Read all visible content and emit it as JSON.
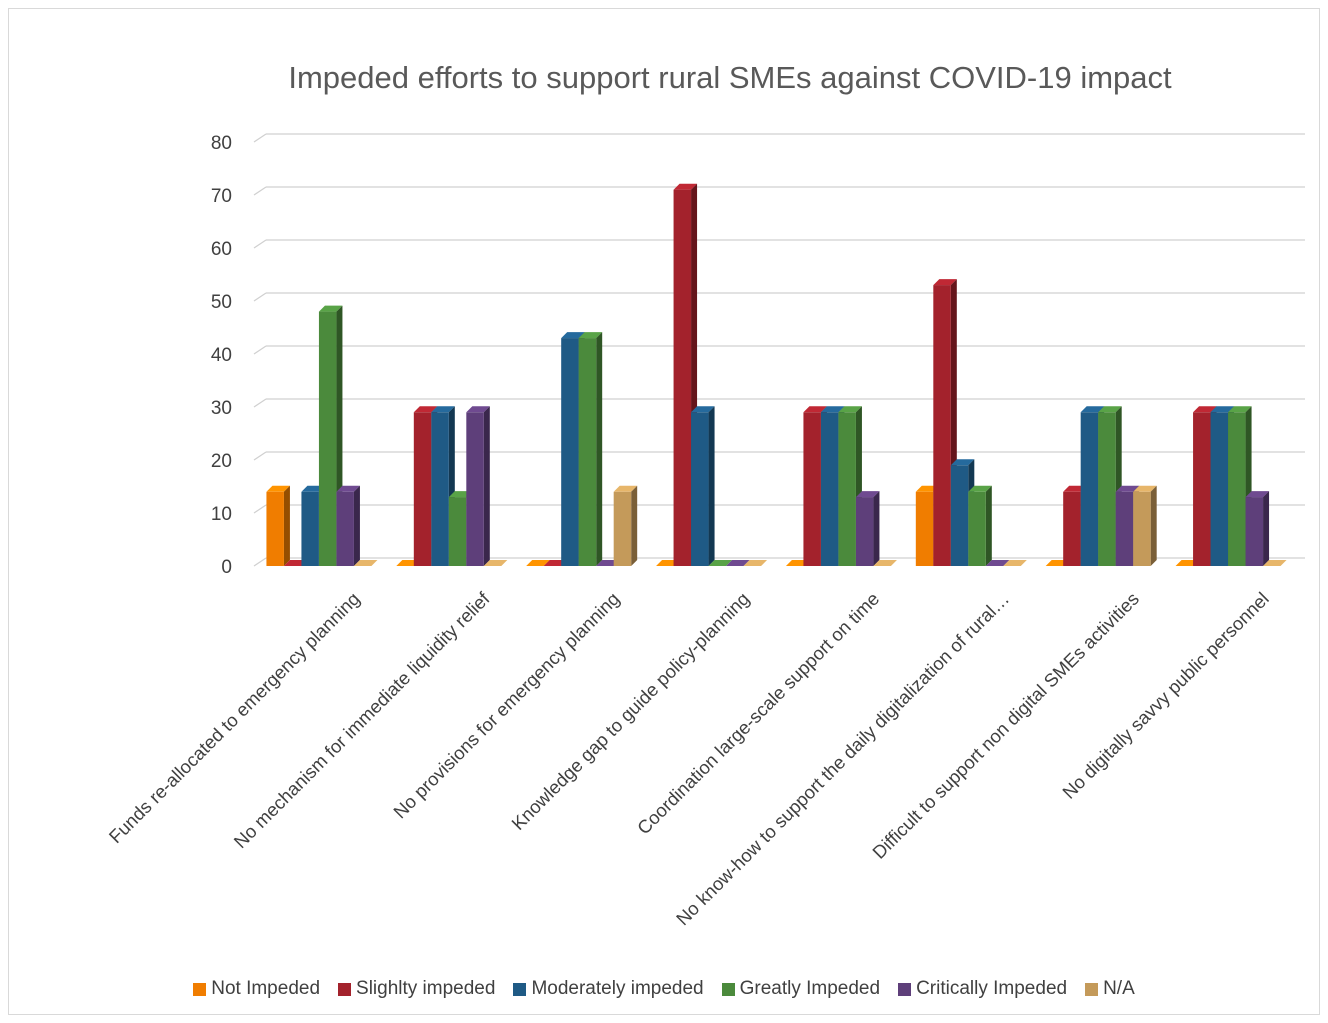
{
  "chart_data": {
    "type": "bar",
    "title": "Impeded efforts to support rural SMEs against COVID-19 impact",
    "xlabel": "",
    "ylabel": "",
    "ylim": [
      0,
      80
    ],
    "yticks": [
      0,
      10,
      20,
      30,
      40,
      50,
      60,
      70,
      80
    ],
    "grid": true,
    "legend_position": "bottom",
    "categories": [
      "Funds re-allocated to emergency planning",
      "No mechanism for immediate liquidity relief",
      "No provisions for emergency planning",
      "Knowledge gap to guide policy-planning",
      "Coordination large-scale support on time",
      "No know-how to support the daily digitalization of rural…",
      "Difficult to support non digital SMEs activities",
      "No digitally savvy public personnel"
    ],
    "series": [
      {
        "name": "Not Impeded",
        "color": "#f07d00",
        "values": [
          14,
          0,
          0,
          0,
          0,
          14,
          0,
          0
        ]
      },
      {
        "name": "Slighlty impeded",
        "color": "#a3222c",
        "values": [
          0,
          29,
          0,
          71,
          29,
          53,
          14,
          29
        ]
      },
      {
        "name": "Moderately impeded",
        "color": "#1f5a85",
        "values": [
          14,
          29,
          43,
          29,
          29,
          19,
          29,
          29
        ]
      },
      {
        "name": "Greatly Impeded",
        "color": "#4b8a3c",
        "values": [
          48,
          13,
          43,
          0,
          29,
          14,
          29,
          29
        ]
      },
      {
        "name": "Critically Impeded",
        "color": "#5e3f7a",
        "values": [
          14,
          29,
          0,
          0,
          13,
          0,
          14,
          13
        ]
      },
      {
        "name": "N/A",
        "color": "#c49a5a",
        "values": [
          0,
          0,
          14,
          0,
          0,
          0,
          14,
          0
        ]
      }
    ]
  }
}
